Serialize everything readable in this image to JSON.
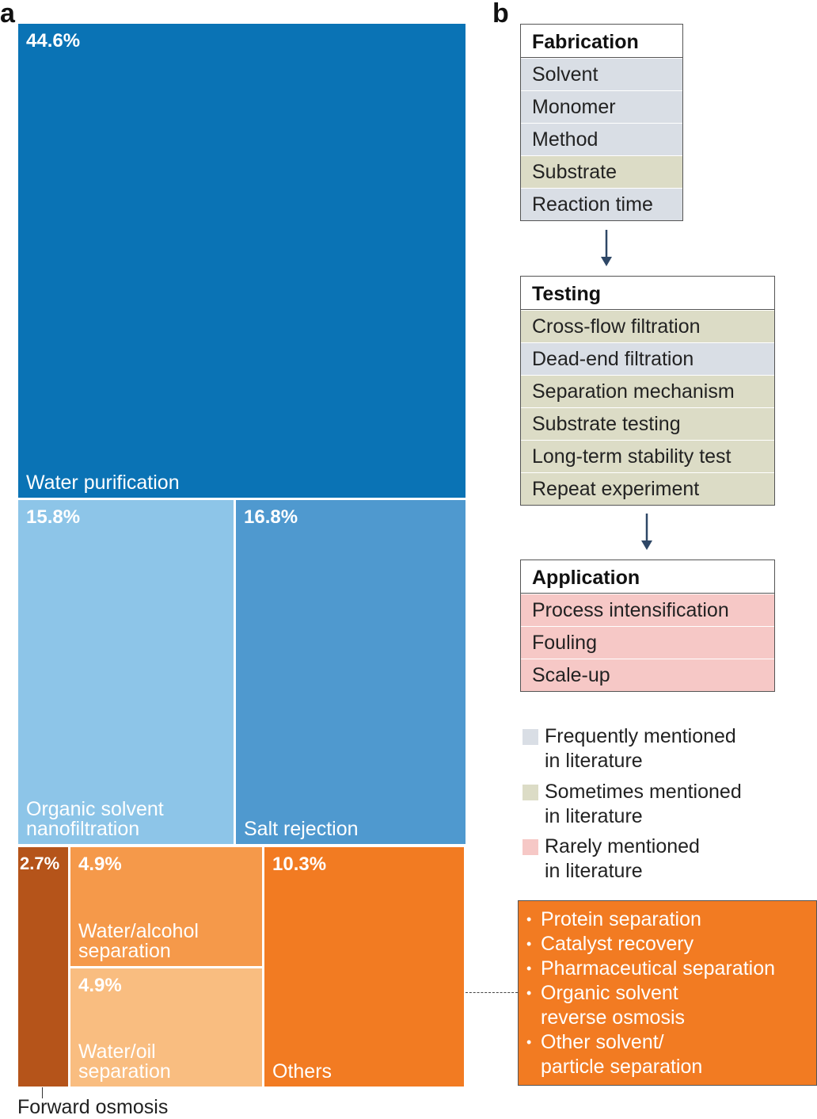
{
  "panel_a": "a",
  "panel_b": "b",
  "chart_data": {
    "type": "treemap",
    "tiles": [
      {
        "id": "water",
        "label": "Water purification",
        "value": 44.6,
        "pct_label": "44.6%",
        "color": "#0a73b5"
      },
      {
        "id": "osn",
        "label": "Organic solvent\nnanofiltration",
        "value": 15.8,
        "pct_label": "15.8%",
        "color": "#8dc5e8"
      },
      {
        "id": "salt",
        "label": "Salt rejection",
        "value": 16.8,
        "pct_label": "16.8%",
        "color": "#4f99cf"
      },
      {
        "id": "fo",
        "label": "Forward osmosis",
        "value": 2.7,
        "pct_label": "2.7%",
        "color": "#b5541a"
      },
      {
        "id": "wa",
        "label": "Water/alcohol\nseparation",
        "value": 4.9,
        "pct_label": "4.9%",
        "color": "#f5994a"
      },
      {
        "id": "wo",
        "label": "Water/oil\nseparation",
        "value": 4.9,
        "pct_label": "4.9%",
        "color": "#f9bd80"
      },
      {
        "id": "others",
        "label": "Others",
        "value": 10.3,
        "pct_label": "10.3%",
        "color": "#f27b22"
      }
    ]
  },
  "workflow": {
    "fabrication": {
      "title": "Fabrication",
      "rows": [
        {
          "label": "Solvent",
          "level": "freq"
        },
        {
          "label": "Monomer",
          "level": "freq"
        },
        {
          "label": "Method",
          "level": "freq"
        },
        {
          "label": "Substrate",
          "level": "some"
        },
        {
          "label": "Reaction time",
          "level": "freq"
        }
      ]
    },
    "testing": {
      "title": "Testing",
      "rows": [
        {
          "label": "Cross-flow filtration",
          "level": "some"
        },
        {
          "label": "Dead-end filtration",
          "level": "freq"
        },
        {
          "label": "Separation mechanism",
          "level": "some"
        },
        {
          "label": "Substrate testing",
          "level": "some"
        },
        {
          "label": "Long-term stability test",
          "level": "some"
        },
        {
          "label": "Repeat experiment",
          "level": "some"
        }
      ]
    },
    "application": {
      "title": "Application",
      "rows": [
        {
          "label": "Process intensification",
          "level": "rare"
        },
        {
          "label": "Fouling",
          "level": "rare"
        },
        {
          "label": "Scale-up",
          "level": "rare"
        }
      ]
    }
  },
  "legend": [
    {
      "level": "freq",
      "color": "#d9dee5",
      "text": "Frequently mentioned\nin literature"
    },
    {
      "level": "some",
      "color": "#dcdcc6",
      "text": "Sometimes mentioned\nin literature"
    },
    {
      "level": "rare",
      "color": "#f6c8c6",
      "text": "Rarely mentioned\nin literature"
    }
  ],
  "others_list": [
    "Protein separation",
    "Catalyst recovery",
    "Pharmaceutical separation",
    "Organic solvent\nreverse osmosis",
    "Other solvent/\nparticle separation"
  ],
  "arrow_color": "#2e4766"
}
